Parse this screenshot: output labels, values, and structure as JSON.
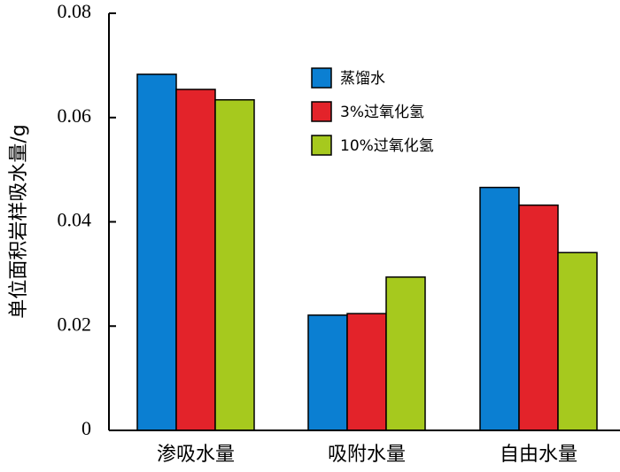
{
  "chart_data": {
    "type": "bar",
    "title": "",
    "xlabel": "",
    "ylabel": "单位面积岩样吸水量/g",
    "ylim": [
      0,
      0.08
    ],
    "yticks": [
      "0",
      "0.02",
      "0.04",
      "0.06",
      "0.08"
    ],
    "ytick_values": [
      0,
      0.02,
      0.04,
      0.06,
      0.08
    ],
    "categories": [
      "渗吸水量",
      "吸附水量",
      "自由水量"
    ],
    "series": [
      {
        "name": "蒸馏水",
        "color": "#0b7fd2",
        "values": [
          0.0683,
          0.0221,
          0.0466
        ]
      },
      {
        "name": "3%过氧化氢",
        "color": "#e3232a",
        "values": [
          0.0654,
          0.0224,
          0.0432
        ]
      },
      {
        "name": "10%过氧化氢",
        "color": "#a6c91e",
        "values": [
          0.0634,
          0.0294,
          0.0341
        ]
      }
    ],
    "grid": false,
    "legend_position": "top-right"
  }
}
